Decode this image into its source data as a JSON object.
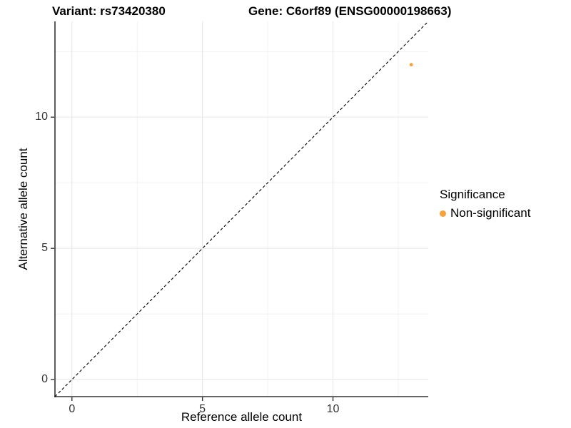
{
  "header": {
    "variant_title": "Variant: rs73420380",
    "gene_title": "Gene: C6orf89 (ENSG00000198663)"
  },
  "chart_data": {
    "type": "scatter",
    "title": "Variant: rs73420380   Gene: C6orf89 (ENSG00000198663)",
    "xlabel": "Reference allele count",
    "ylabel": "Alternative allele count",
    "xlim": [
      -0.65,
      13.65
    ],
    "ylim": [
      -0.65,
      13.65
    ],
    "x_ticks": [
      0,
      5,
      10
    ],
    "y_ticks": [
      0,
      5,
      10
    ],
    "x_minor_ticks": [
      2.5,
      7.5,
      12.5
    ],
    "y_minor_ticks": [
      2.5,
      7.5,
      12.5
    ],
    "grid": "major+minor",
    "reference_line": {
      "type": "identity",
      "slope": 1,
      "intercept": 0,
      "style": "dashed",
      "color": "#000000"
    },
    "series": [
      {
        "name": "Non-significant",
        "color": "#F9A23C",
        "points": [
          [
            13,
            12
          ]
        ],
        "point_radius_px": 2.4
      }
    ],
    "legend": {
      "title": "Significance",
      "position": "right",
      "entries": [
        {
          "label": "Non-significant",
          "color": "#F9A23C"
        }
      ]
    }
  },
  "colors": {
    "background": "#FFFFFF",
    "grid_major": "#E7E7E7",
    "grid_minor": "#F0F0F0",
    "axis_line": "#333333",
    "tick_mark": "#333333",
    "tick_label": "#333333",
    "text": "#000000"
  }
}
